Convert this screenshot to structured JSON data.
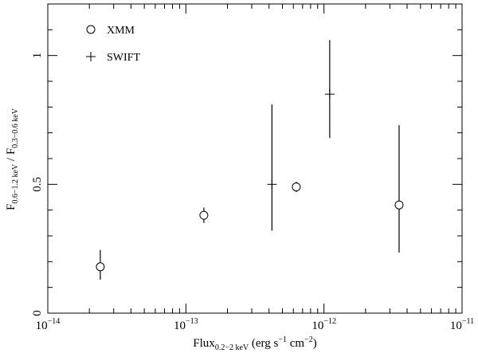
{
  "chart_data": {
    "type": "scatter",
    "x_scale": "log",
    "xlim": [
      1e-14,
      1e-11
    ],
    "ylim": [
      0,
      1.2
    ],
    "x_ticks": [
      {
        "value": 1e-14,
        "mantissa": "10",
        "exponent": "−14"
      },
      {
        "value": 1e-13,
        "mantissa": "10",
        "exponent": "−13"
      },
      {
        "value": 1e-12,
        "mantissa": "10",
        "exponent": "−12"
      },
      {
        "value": 1e-11,
        "mantissa": "10",
        "exponent": "−11"
      }
    ],
    "y_ticks": [
      {
        "value": 0,
        "label": "0"
      },
      {
        "value": 0.5,
        "label": "0.5"
      },
      {
        "value": 1,
        "label": "1"
      }
    ],
    "xlabel": {
      "main": "Flux",
      "sub": "0.2−2 keV",
      "rest": " (erg s",
      "exp1": "−1",
      "mid": " cm",
      "exp2": "−2",
      "end": ")"
    },
    "ylabel": {
      "a": "F",
      "a_sub": "0.6−1.2 keV",
      "sep": " / F",
      "b_sub": "0.3−0.6 keV"
    },
    "legend": [
      {
        "name": "XMM",
        "marker": "circle"
      },
      {
        "name": "SWIFT",
        "marker": "plus"
      }
    ],
    "series": [
      {
        "name": "XMM",
        "marker": "circle",
        "points": [
          {
            "x": 2.4e-14,
            "y": 0.18,
            "ylo": 0.13,
            "yhi": 0.245
          },
          {
            "x": 1.35e-13,
            "y": 0.38,
            "ylo": 0.35,
            "yhi": 0.41
          },
          {
            "x": 6.3e-13,
            "y": 0.49,
            "ylo": 0.47,
            "yhi": 0.51
          },
          {
            "x": 3.5e-12,
            "y": 0.42,
            "ylo": 0.235,
            "yhi": 0.73
          }
        ]
      },
      {
        "name": "SWIFT",
        "marker": "plus",
        "points": [
          {
            "x": 4.2e-13,
            "y": 0.5,
            "ylo": 0.32,
            "yhi": 0.81
          },
          {
            "x": 1.1e-12,
            "y": 0.85,
            "ylo": 0.68,
            "yhi": 1.06
          }
        ]
      }
    ],
    "grid": false,
    "legend_position": "top-left"
  }
}
